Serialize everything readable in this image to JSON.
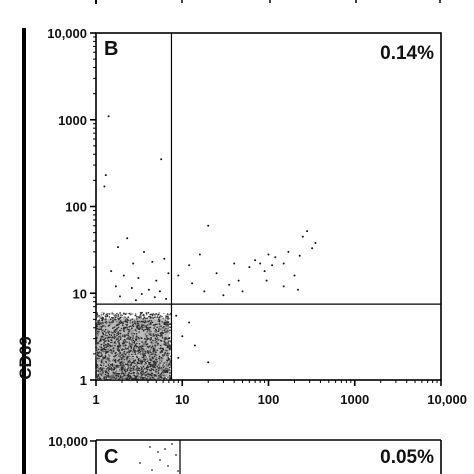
{
  "chart_data": [
    {
      "panel": "B",
      "type": "scatter",
      "xscale": "log",
      "yscale": "log",
      "xlim": [
        1,
        10000
      ],
      "ylim": [
        1,
        10000
      ],
      "x_ticks": [
        "1",
        "10",
        "100",
        "1000",
        "10,000"
      ],
      "y_ticks": [
        "1",
        "10",
        "100",
        "1000",
        "10,000"
      ],
      "ylabel": "CD69",
      "xlabel": "",
      "quadrant_percent": "0.14%",
      "gates": {
        "x": 7.5,
        "y": 7.5
      },
      "dense_cluster": {
        "x_range": [
          1,
          7.5
        ],
        "y_range": [
          1,
          6
        ],
        "color": "#444444"
      },
      "points": [
        [
          1.4,
          1100
        ],
        [
          5.7,
          350
        ],
        [
          1.3,
          230
        ],
        [
          1.25,
          170
        ],
        [
          2.3,
          43
        ],
        [
          1.8,
          34
        ],
        [
          3.6,
          30
        ],
        [
          4.5,
          23
        ],
        [
          6.2,
          25
        ],
        [
          2.7,
          22
        ],
        [
          1.5,
          18
        ],
        [
          2.1,
          16
        ],
        [
          3.1,
          15
        ],
        [
          5.0,
          14
        ],
        [
          6.9,
          17
        ],
        [
          1.7,
          12
        ],
        [
          2.6,
          11.5
        ],
        [
          4.1,
          11
        ],
        [
          5.5,
          10.5
        ],
        [
          3.4,
          9.8
        ],
        [
          1.9,
          9.2
        ],
        [
          4.8,
          9.0
        ],
        [
          6.5,
          8.6
        ],
        [
          2.9,
          8.3
        ],
        [
          20,
          60
        ],
        [
          16,
          28
        ],
        [
          12,
          21
        ],
        [
          25,
          17
        ],
        [
          40,
          22
        ],
        [
          45,
          14
        ],
        [
          60,
          20
        ],
        [
          70,
          24
        ],
        [
          80,
          22
        ],
        [
          90,
          18
        ],
        [
          100,
          28
        ],
        [
          110,
          21
        ],
        [
          120,
          26
        ],
        [
          150,
          22
        ],
        [
          170,
          30
        ],
        [
          200,
          16
        ],
        [
          230,
          27
        ],
        [
          250,
          45
        ],
        [
          280,
          52
        ],
        [
          320,
          33
        ],
        [
          350,
          38
        ],
        [
          150,
          12
        ],
        [
          220,
          11
        ],
        [
          30,
          9.5
        ],
        [
          50,
          10.5
        ],
        [
          9,
          16
        ],
        [
          13,
          13
        ],
        [
          18,
          10.5
        ],
        [
          10,
          3.2
        ],
        [
          14,
          2.5
        ],
        [
          20,
          1.6
        ],
        [
          9,
          1.8
        ],
        [
          12,
          4.6
        ],
        [
          8.5,
          5.5
        ],
        [
          35,
          12.5
        ],
        [
          95,
          14
        ]
      ]
    },
    {
      "panel": "C",
      "type": "scatter",
      "xscale": "log",
      "yscale": "log",
      "y_ticks": [
        "10,000"
      ],
      "quadrant_percent": "0.05%",
      "gates": {
        "x": 7.5
      }
    }
  ]
}
